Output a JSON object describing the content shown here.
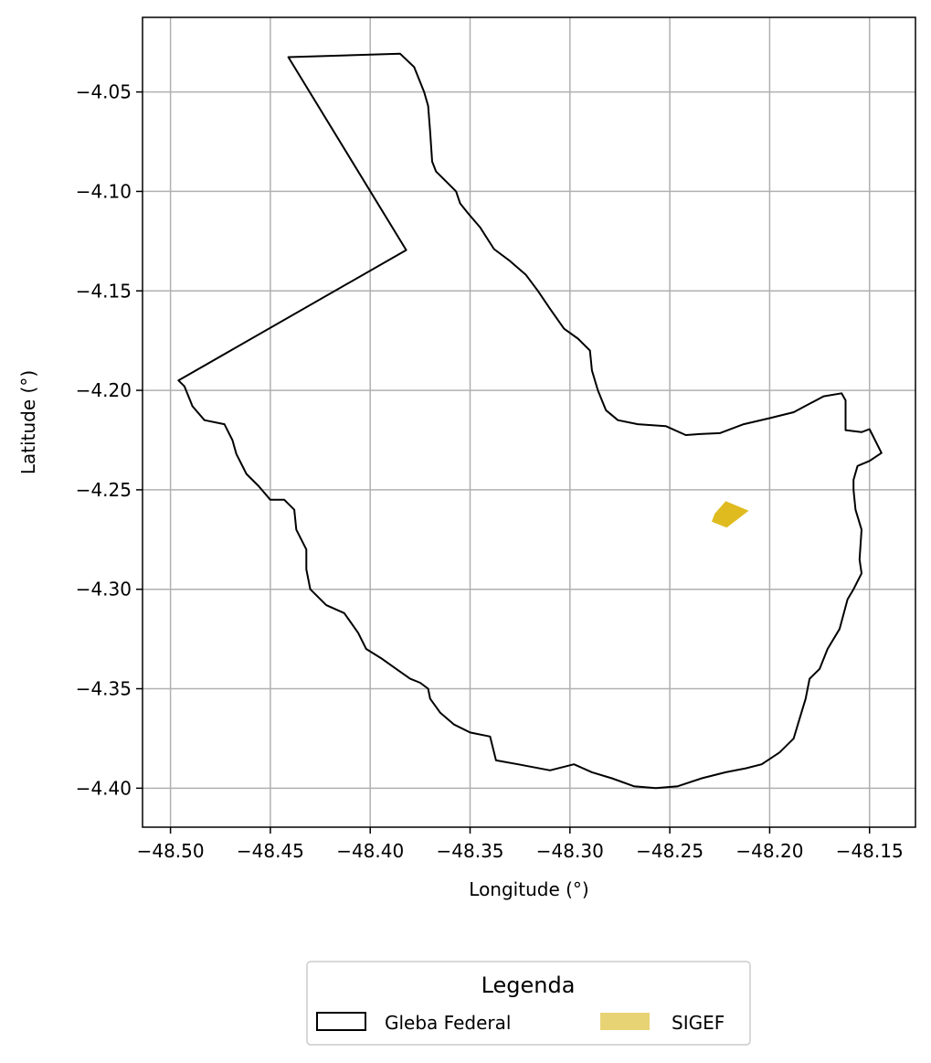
{
  "chart_data": {
    "type": "map",
    "xlabel": "Longitude (°)",
    "ylabel": "Latitude (°)",
    "xlim": [
      -48.514,
      -48.127
    ],
    "ylim": [
      -4.4196,
      -4.0125
    ],
    "xticks": [
      -48.5,
      -48.45,
      -48.4,
      -48.35,
      -48.3,
      -48.25,
      -48.2,
      -48.15
    ],
    "xtick_labels": [
      "−48.50",
      "−48.45",
      "−48.40",
      "−48.35",
      "−48.30",
      "−48.25",
      "−48.20",
      "−48.15"
    ],
    "yticks": [
      -4.05,
      -4.1,
      -4.15,
      -4.2,
      -4.25,
      -4.3,
      -4.35,
      -4.4
    ],
    "ytick_labels": [
      "−4.05",
      "−4.10",
      "−4.15",
      "−4.20",
      "−4.25",
      "−4.30",
      "−4.35",
      "−4.40"
    ],
    "grid": true,
    "legend": {
      "title": "Legenda",
      "placement": "below",
      "entries": [
        {
          "label": "Gleba Federal",
          "style": "outline",
          "color": "#000000"
        },
        {
          "label": "SIGEF",
          "style": "fill",
          "color": "#e8d374"
        }
      ]
    },
    "layers": [
      {
        "name": "Gleba Federal",
        "edge_color": "#000000",
        "fill": "none",
        "polygon": [
          [
            -48.441,
            -4.0325
          ],
          [
            -48.385,
            -4.0308
          ],
          [
            -48.378,
            -4.0375
          ],
          [
            -48.373,
            -4.05
          ],
          [
            -48.371,
            -4.057
          ],
          [
            -48.37,
            -4.07
          ],
          [
            -48.369,
            -4.085
          ],
          [
            -48.367,
            -4.09
          ],
          [
            -48.362,
            -4.095
          ],
          [
            -48.357,
            -4.1
          ],
          [
            -48.355,
            -4.106
          ],
          [
            -48.351,
            -4.111
          ],
          [
            -48.345,
            -4.118
          ],
          [
            -48.338,
            -4.129
          ],
          [
            -48.33,
            -4.135
          ],
          [
            -48.322,
            -4.142
          ],
          [
            -48.316,
            -4.15
          ],
          [
            -48.31,
            -4.159
          ],
          [
            -48.303,
            -4.169
          ],
          [
            -48.296,
            -4.174
          ],
          [
            -48.29,
            -4.18
          ],
          [
            -48.289,
            -4.19
          ],
          [
            -48.286,
            -4.2
          ],
          [
            -48.282,
            -4.21
          ],
          [
            -48.276,
            -4.215
          ],
          [
            -48.266,
            -4.217
          ],
          [
            -48.252,
            -4.218
          ],
          [
            -48.242,
            -4.2225
          ],
          [
            -48.235,
            -4.222
          ],
          [
            -48.225,
            -4.2215
          ],
          [
            -48.213,
            -4.217
          ],
          [
            -48.2,
            -4.214
          ],
          [
            -48.188,
            -4.211
          ],
          [
            -48.173,
            -4.203
          ],
          [
            -48.164,
            -4.2015
          ],
          [
            -48.162,
            -4.205
          ],
          [
            -48.162,
            -4.22
          ],
          [
            -48.154,
            -4.221
          ],
          [
            -48.15,
            -4.2195
          ],
          [
            -48.144,
            -4.2315
          ],
          [
            -48.15,
            -4.2355
          ],
          [
            -48.156,
            -4.238
          ],
          [
            -48.158,
            -4.245
          ],
          [
            -48.158,
            -4.25
          ],
          [
            -48.157,
            -4.26
          ],
          [
            -48.154,
            -4.27
          ],
          [
            -48.155,
            -4.285
          ],
          [
            -48.154,
            -4.292
          ],
          [
            -48.158,
            -4.3
          ],
          [
            -48.161,
            -4.305
          ],
          [
            -48.165,
            -4.32
          ],
          [
            -48.171,
            -4.33
          ],
          [
            -48.175,
            -4.34
          ],
          [
            -48.18,
            -4.345
          ],
          [
            -48.182,
            -4.355
          ],
          [
            -48.185,
            -4.365
          ],
          [
            -48.188,
            -4.375
          ],
          [
            -48.195,
            -4.382
          ],
          [
            -48.204,
            -4.388
          ],
          [
            -48.212,
            -4.39
          ],
          [
            -48.222,
            -4.392
          ],
          [
            -48.234,
            -4.395
          ],
          [
            -48.246,
            -4.399
          ],
          [
            -48.257,
            -4.4
          ],
          [
            -48.268,
            -4.399
          ],
          [
            -48.279,
            -4.395
          ],
          [
            -48.289,
            -4.392
          ],
          [
            -48.298,
            -4.388
          ],
          [
            -48.31,
            -4.391
          ],
          [
            -48.326,
            -4.388
          ],
          [
            -48.337,
            -4.386
          ],
          [
            -48.34,
            -4.374
          ],
          [
            -48.35,
            -4.372
          ],
          [
            -48.358,
            -4.368
          ],
          [
            -48.365,
            -4.362
          ],
          [
            -48.37,
            -4.355
          ],
          [
            -48.371,
            -4.35
          ],
          [
            -48.375,
            -4.347
          ],
          [
            -48.38,
            -4.345
          ],
          [
            -48.387,
            -4.34
          ],
          [
            -48.394,
            -4.335
          ],
          [
            -48.402,
            -4.33
          ],
          [
            -48.406,
            -4.322
          ],
          [
            -48.413,
            -4.312
          ],
          [
            -48.422,
            -4.308
          ],
          [
            -48.43,
            -4.3
          ],
          [
            -48.432,
            -4.29
          ],
          [
            -48.432,
            -4.28
          ],
          [
            -48.437,
            -4.27
          ],
          [
            -48.438,
            -4.26
          ],
          [
            -48.443,
            -4.255
          ],
          [
            -48.45,
            -4.255
          ],
          [
            -48.456,
            -4.248
          ],
          [
            -48.462,
            -4.242
          ],
          [
            -48.467,
            -4.232
          ],
          [
            -48.469,
            -4.225
          ],
          [
            -48.473,
            -4.217
          ],
          [
            -48.483,
            -4.215
          ],
          [
            -48.489,
            -4.208
          ],
          [
            -48.493,
            -4.198
          ],
          [
            -48.496,
            -4.195
          ],
          [
            -48.382,
            -4.1295
          ],
          [
            -48.441,
            -4.0325
          ]
        ]
      },
      {
        "name": "SIGEF",
        "fill_color": "#dfbb1f",
        "polygon": [
          [
            -48.222,
            -4.2557
          ],
          [
            -48.2105,
            -4.2605
          ],
          [
            -48.2215,
            -4.269
          ],
          [
            -48.229,
            -4.266
          ],
          [
            -48.2275,
            -4.262
          ]
        ]
      }
    ]
  }
}
